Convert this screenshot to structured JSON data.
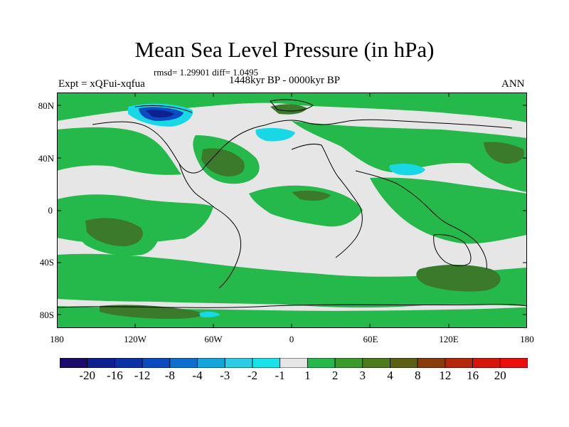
{
  "title": "Mean Sea Level Pressure (in hPa)",
  "stats": "rmsd= 1.29901 diff= 1.0495",
  "experiment": "Expt = xQFui-xqfua",
  "period": "1448kyr BP - 0000kyr BP",
  "season": "ANN",
  "lat_labels": [
    "80N",
    "40N",
    "0",
    "40S",
    "80S"
  ],
  "lon_labels": [
    "180",
    "120W",
    "60W",
    "0",
    "60E",
    "120E",
    "180"
  ],
  "colorbar": {
    "labels": [
      "-20",
      "-16",
      "-12",
      "-8",
      "-4",
      "-3",
      "-2",
      "-1",
      "1",
      "2",
      "3",
      "4",
      "8",
      "12",
      "16",
      "20"
    ],
    "colors": [
      "#1b0b6b",
      "#0f1f8f",
      "#0b31a8",
      "#0a4cc0",
      "#0b6fcf",
      "#12a6dc",
      "#2ccbe6",
      "#19e3e8",
      "#e6e6e6",
      "#25b84a",
      "#3a9a2a",
      "#4c7b1c",
      "#5b5f14",
      "#8a3b0e",
      "#b5270b",
      "#d8150a",
      "#ee0d0d"
    ]
  },
  "colors": {
    "neutral": "#e6e6e6",
    "green": "#25b84a",
    "olive": "#3a7a2a",
    "brown": "#4f6a1c",
    "cyan": "#19d8e6",
    "blue": "#0b4cc0",
    "dark_blue": "#0f1f8f"
  }
}
